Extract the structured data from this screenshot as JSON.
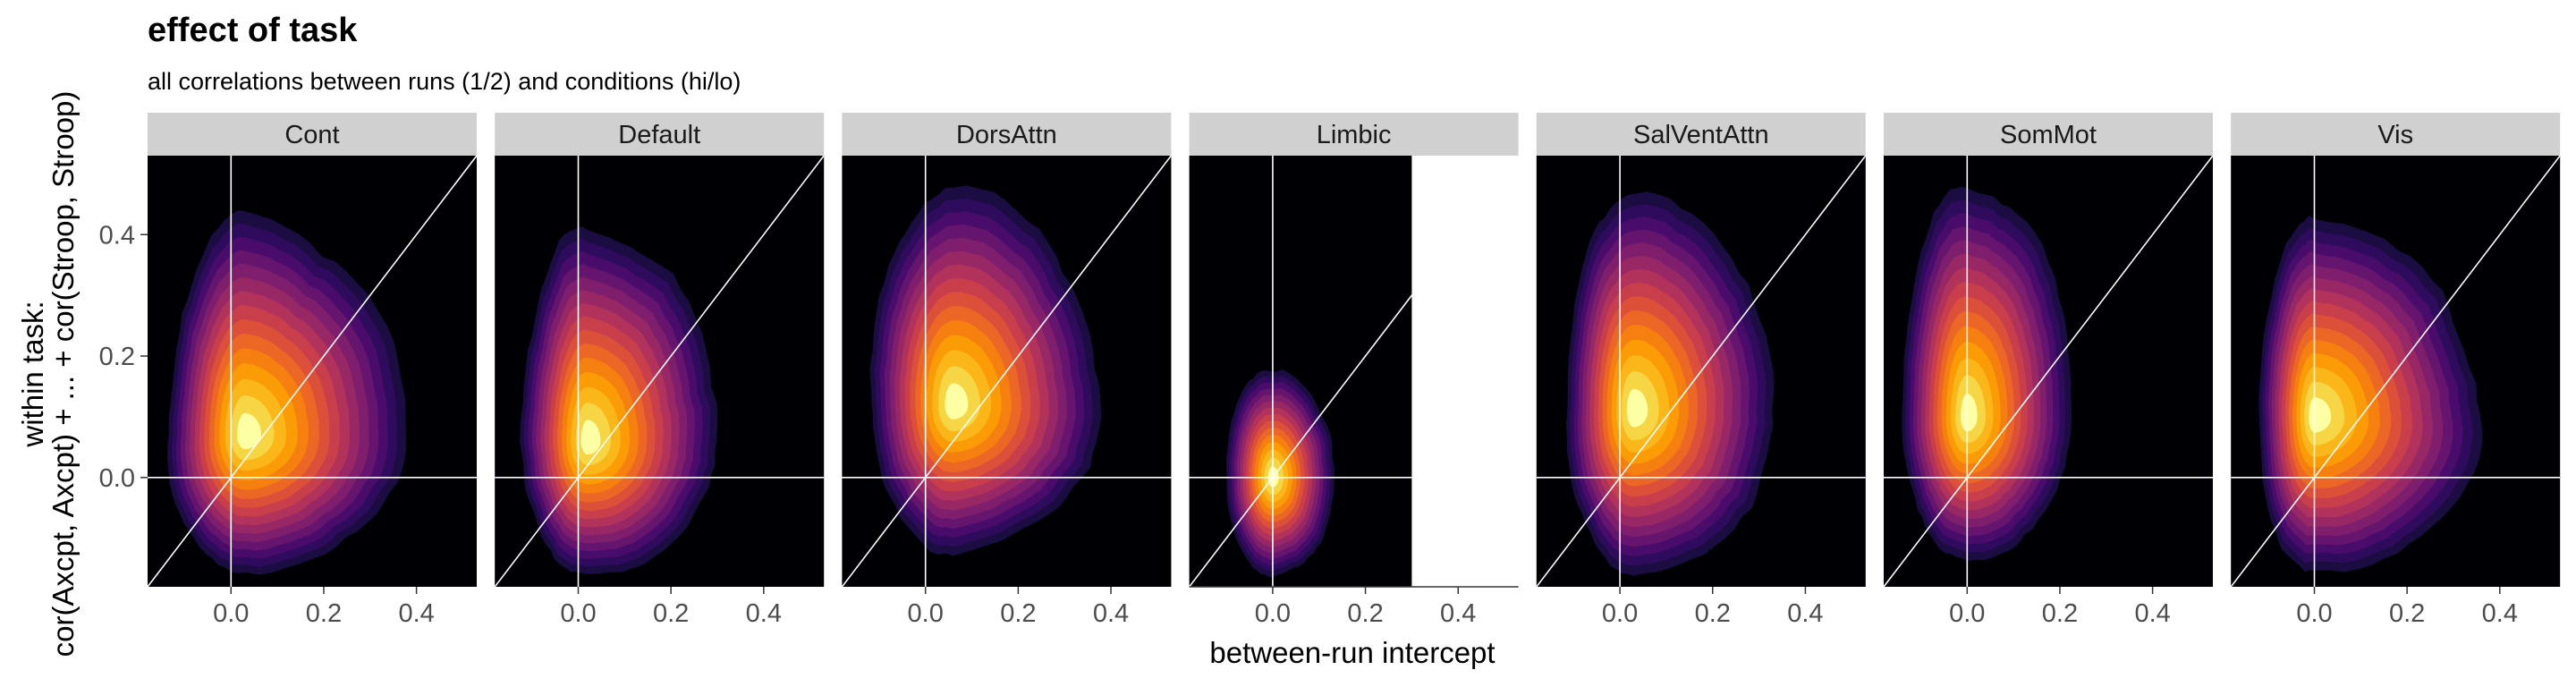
{
  "chart_data": {
    "type": "heatmap",
    "subtype": "faceted 2D density contour (filled, inferno palette)",
    "title": "effect of task",
    "subtitle": "all correlations between runs (1/2) and conditions (hi/lo)",
    "xlabel": "between-run intercept",
    "ylabel_line1": "within task:",
    "ylabel_line2": "cor(Axcpt, Axcpt) + ... + cor(Stroop, Stroop)",
    "xlim": [
      -0.18,
      0.53
    ],
    "ylim": [
      -0.18,
      0.53
    ],
    "x_ticks": [
      0.0,
      0.2,
      0.4
    ],
    "x_tick_labels": [
      "0.0",
      "0.2",
      "0.4"
    ],
    "y_ticks": [
      0.0,
      0.2,
      0.4
    ],
    "y_tick_labels": [
      "0.0",
      "0.2",
      "0.4"
    ],
    "reference_lines": {
      "vline_x": 0,
      "hline_y": 0,
      "identity_line": true
    },
    "background": "black",
    "palette": [
      "#1b0c41",
      "#2f0b5e",
      "#4a0c6b",
      "#65156e",
      "#7e1e6c",
      "#982766",
      "#b1325a",
      "#c83e4b",
      "#dc5039",
      "#ec6725",
      "#f6800f",
      "#fb9b06",
      "#fbb61a",
      "#f6d645",
      "#fcffa4"
    ],
    "facets": [
      {
        "label": "Cont",
        "peak": [
          0.03,
          0.07
        ],
        "sd": [
          0.1,
          0.13
        ],
        "spread_x": [
          -0.14,
          0.38
        ],
        "spread_y": [
          -0.16,
          0.43
        ]
      },
      {
        "label": "Default",
        "peak": [
          0.02,
          0.06
        ],
        "sd": [
          0.09,
          0.12
        ],
        "spread_x": [
          -0.12,
          0.3
        ],
        "spread_y": [
          -0.16,
          0.41
        ]
      },
      {
        "label": "DorsAttn",
        "peak": [
          0.06,
          0.12
        ],
        "sd": [
          0.11,
          0.13
        ],
        "spread_x": [
          -0.12,
          0.38
        ],
        "spread_y": [
          -0.12,
          0.47
        ]
      },
      {
        "label": "Limbic",
        "peak": [
          0.0,
          0.0
        ],
        "sd": [
          0.04,
          0.07
        ],
        "spread_x": [
          -0.1,
          0.13
        ],
        "spread_y": [
          -0.16,
          0.18
        ],
        "xlim": [
          -0.18,
          0.3
        ]
      },
      {
        "label": "SalVentAttn",
        "peak": [
          0.03,
          0.11
        ],
        "sd": [
          0.09,
          0.13
        ],
        "spread_x": [
          -0.12,
          0.33
        ],
        "spread_y": [
          -0.16,
          0.47
        ]
      },
      {
        "label": "SomMot",
        "peak": [
          0.0,
          0.1
        ],
        "sd": [
          0.08,
          0.14
        ],
        "spread_x": [
          -0.14,
          0.22
        ],
        "spread_y": [
          -0.14,
          0.48
        ]
      },
      {
        "label": "Vis",
        "peak": [
          0.0,
          0.1
        ],
        "sd": [
          0.09,
          0.13
        ],
        "spread_x": [
          -0.12,
          0.36
        ],
        "spread_y": [
          -0.16,
          0.42
        ]
      }
    ]
  }
}
